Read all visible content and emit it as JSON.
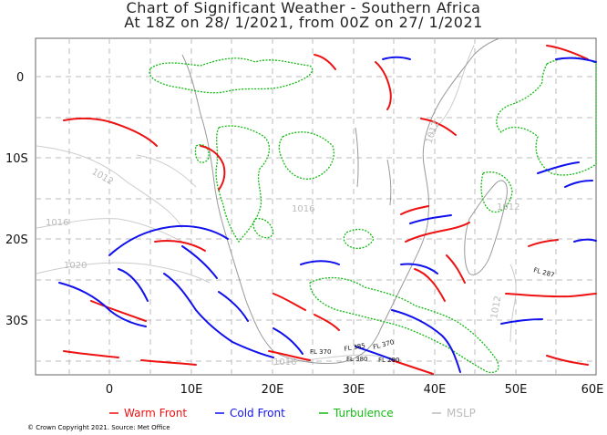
{
  "title_line1": "Chart of Significant Weather - Southern Africa",
  "title_line2": "At 18Z on 28/ 1/2021, from 00Z on 27/ 1/2021",
  "lat_labels": [
    "0",
    "10S",
    "20S",
    "30S"
  ],
  "lon_labels": [
    "0",
    "10E",
    "20E",
    "30E",
    "40E",
    "50E",
    "60E"
  ],
  "isobar_labels": [
    "1012",
    "1016",
    "1020",
    "1012",
    "1016",
    "1012",
    "1012",
    "1016"
  ],
  "flight_level_labels": [
    "FL 385",
    "FL 370",
    "FL 370",
    "FL 380",
    "FL 290",
    "FL 287"
  ],
  "legend": [
    {
      "label": "Warm Front",
      "color": "#ee1111"
    },
    {
      "label": "Cold Front",
      "color": "#1111ee"
    },
    {
      "label": "Turbulence",
      "color": "#11bb11"
    },
    {
      "label": "MSLP",
      "color": "#bbbbbb"
    }
  ],
  "copyright": "© Crown Copyright 2021. Source: Met Office",
  "colors": {
    "warm_front": "#ee1111",
    "cold_front": "#1111ee",
    "turbulence": "#11bb11",
    "mslp": "#bbbbbb",
    "coast": "#999999"
  }
}
